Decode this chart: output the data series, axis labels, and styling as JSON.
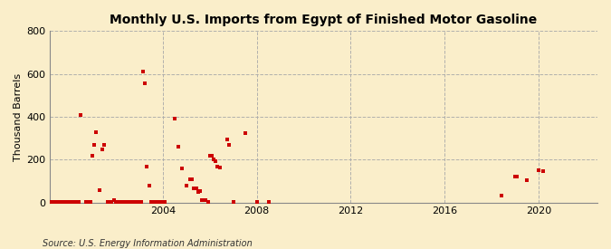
{
  "title": "Monthly U.S. Imports from Egypt of Finished Motor Gasoline",
  "ylabel": "Thousand Barrels",
  "source_text": "Source: U.S. Energy Information Administration",
  "background_color": "#faeeca",
  "marker_color": "#cc0000",
  "ylim": [
    0,
    800
  ],
  "yticks": [
    0,
    200,
    400,
    600,
    800
  ],
  "xlim_start": 1999.2,
  "xlim_end": 2022.5,
  "xticks": [
    2004,
    2008,
    2012,
    2016,
    2020
  ],
  "data_points": [
    [
      1999.25,
      2
    ],
    [
      1999.33,
      2
    ],
    [
      1999.42,
      2
    ],
    [
      1999.5,
      2
    ],
    [
      1999.58,
      2
    ],
    [
      1999.67,
      2
    ],
    [
      1999.75,
      2
    ],
    [
      1999.83,
      2
    ],
    [
      1999.92,
      2
    ],
    [
      2000.0,
      2
    ],
    [
      2000.08,
      2
    ],
    [
      2000.17,
      2
    ],
    [
      2000.25,
      2
    ],
    [
      2000.33,
      2
    ],
    [
      2000.42,
      2
    ],
    [
      2000.5,
      410
    ],
    [
      2000.75,
      2
    ],
    [
      2000.83,
      2
    ],
    [
      2000.92,
      2
    ],
    [
      2001.0,
      220
    ],
    [
      2001.08,
      270
    ],
    [
      2001.17,
      330
    ],
    [
      2001.33,
      60
    ],
    [
      2001.42,
      250
    ],
    [
      2001.5,
      270
    ],
    [
      2001.67,
      2
    ],
    [
      2001.75,
      2
    ],
    [
      2001.83,
      2
    ],
    [
      2001.92,
      10
    ],
    [
      2002.0,
      2
    ],
    [
      2002.08,
      2
    ],
    [
      2002.17,
      2
    ],
    [
      2002.25,
      2
    ],
    [
      2002.33,
      2
    ],
    [
      2002.42,
      2
    ],
    [
      2002.5,
      2
    ],
    [
      2002.58,
      2
    ],
    [
      2002.67,
      2
    ],
    [
      2002.75,
      2
    ],
    [
      2002.83,
      2
    ],
    [
      2002.92,
      2
    ],
    [
      2003.0,
      2
    ],
    [
      2003.08,
      2
    ],
    [
      2003.17,
      610
    ],
    [
      2003.25,
      555
    ],
    [
      2003.33,
      170
    ],
    [
      2003.42,
      80
    ],
    [
      2003.5,
      2
    ],
    [
      2003.58,
      2
    ],
    [
      2003.67,
      2
    ],
    [
      2003.75,
      2
    ],
    [
      2003.83,
      2
    ],
    [
      2003.92,
      2
    ],
    [
      2004.0,
      2
    ],
    [
      2004.08,
      2
    ],
    [
      2004.5,
      390
    ],
    [
      2004.67,
      260
    ],
    [
      2004.83,
      160
    ],
    [
      2005.0,
      80
    ],
    [
      2005.17,
      110
    ],
    [
      2005.25,
      110
    ],
    [
      2005.33,
      65
    ],
    [
      2005.42,
      65
    ],
    [
      2005.5,
      50
    ],
    [
      2005.58,
      55
    ],
    [
      2005.67,
      10
    ],
    [
      2005.75,
      10
    ],
    [
      2005.83,
      10
    ],
    [
      2005.92,
      2
    ],
    [
      2006.0,
      220
    ],
    [
      2006.08,
      220
    ],
    [
      2006.17,
      200
    ],
    [
      2006.25,
      195
    ],
    [
      2006.33,
      170
    ],
    [
      2006.42,
      165
    ],
    [
      2006.75,
      295
    ],
    [
      2006.83,
      270
    ],
    [
      2007.0,
      2
    ],
    [
      2007.5,
      325
    ],
    [
      2008.0,
      5
    ],
    [
      2008.5,
      5
    ],
    [
      2018.42,
      35
    ],
    [
      2019.0,
      120
    ],
    [
      2019.08,
      120
    ],
    [
      2019.5,
      105
    ],
    [
      2020.0,
      150
    ],
    [
      2020.17,
      145
    ]
  ]
}
